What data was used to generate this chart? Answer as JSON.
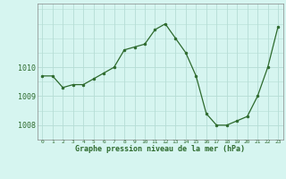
{
  "x": [
    0,
    1,
    2,
    3,
    4,
    5,
    6,
    7,
    8,
    9,
    10,
    11,
    12,
    13,
    14,
    15,
    16,
    17,
    18,
    19,
    20,
    21,
    22,
    23
  ],
  "y": [
    1009.7,
    1009.7,
    1009.3,
    1009.4,
    1009.4,
    1009.6,
    1009.8,
    1010.0,
    1010.6,
    1010.7,
    1010.8,
    1011.3,
    1011.5,
    1011.0,
    1010.5,
    1009.7,
    1008.4,
    1008.0,
    1008.0,
    1008.15,
    1008.3,
    1009.0,
    1010.0,
    1011.4
  ],
  "line_color": "#2d6a2d",
  "marker_color": "#2d6a2d",
  "bg_color": "#d6f5f0",
  "grid_color": "#b5ddd5",
  "title": "Graphe pression niveau de la mer (hPa)",
  "xlabel_ticks": [
    "0",
    "1",
    "2",
    "3",
    "4",
    "5",
    "6",
    "7",
    "8",
    "9",
    "10",
    "11",
    "12",
    "13",
    "14",
    "15",
    "16",
    "17",
    "18",
    "19",
    "20",
    "21",
    "22",
    "23"
  ],
  "ytick_labels": [
    "1008",
    "1009",
    "1010"
  ],
  "ytick_vals": [
    1008,
    1009,
    1010
  ],
  "ylim": [
    1007.5,
    1012.2
  ],
  "xlim": [
    -0.5,
    23.5
  ]
}
